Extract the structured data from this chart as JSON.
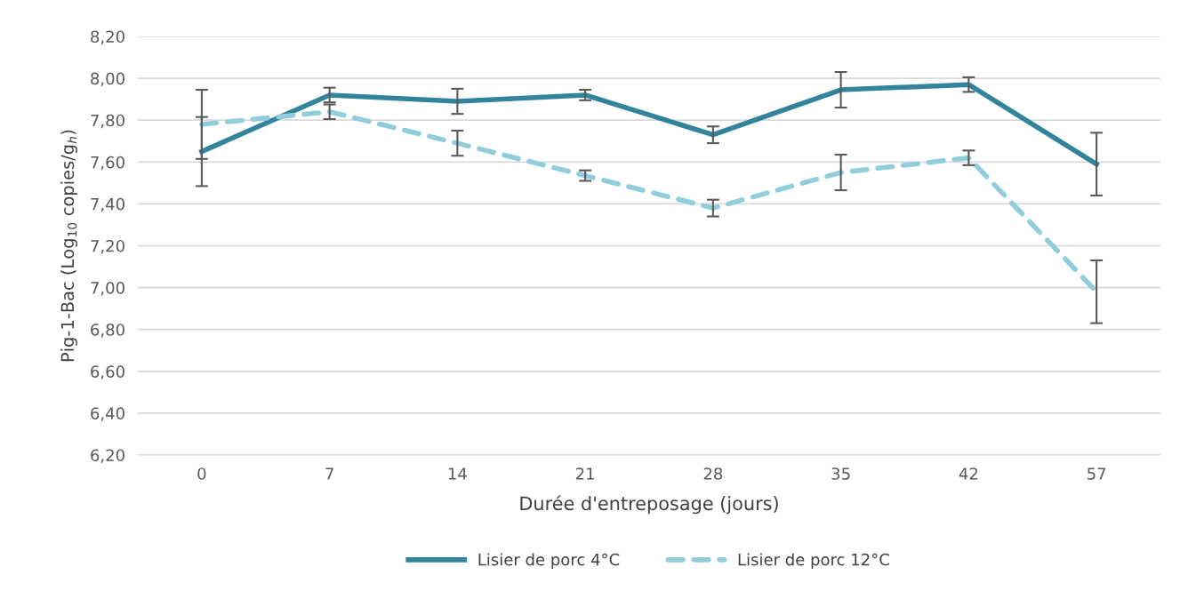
{
  "chart_data": {
    "type": "line",
    "xlabel": "Durée d'entreposage (jours)",
    "ylabel": "Pig-1-Bac (Log$_{10}$ copies/g$_{h}$)",
    "categories": [
      "0",
      "7",
      "14",
      "21",
      "28",
      "35",
      "42",
      "57"
    ],
    "series": [
      {
        "name": "Lisier de porc 4°C",
        "color": "#31849b",
        "line_style": "solid",
        "values": [
          7.65,
          7.92,
          7.89,
          7.92,
          7.73,
          7.945,
          7.97,
          7.59
        ],
        "errors": [
          0.165,
          0.035,
          0.06,
          0.025,
          0.04,
          0.085,
          0.035,
          0.15
        ]
      },
      {
        "name": "Lisier de porc 12°C",
        "color": "#92cddc",
        "line_style": "dashed",
        "values": [
          7.78,
          7.84,
          7.69,
          7.535,
          7.38,
          7.55,
          7.62,
          6.98
        ],
        "errors": [
          0.165,
          0.035,
          0.06,
          0.025,
          0.04,
          0.085,
          0.035,
          0.15
        ]
      }
    ],
    "ylim": [
      6.2,
      8.2
    ],
    "yticks": [
      {
        "value": 6.2,
        "label": "6,20"
      },
      {
        "value": 6.4,
        "label": "6,40"
      },
      {
        "value": 6.6,
        "label": "6,60"
      },
      {
        "value": 6.8,
        "label": "6,80"
      },
      {
        "value": 7.0,
        "label": "7,00"
      },
      {
        "value": 7.2,
        "label": "7,20"
      },
      {
        "value": 7.4,
        "label": "7,40"
      },
      {
        "value": 7.6,
        "label": "7,60"
      },
      {
        "value": 7.8,
        "label": "7,80"
      },
      {
        "value": 8.0,
        "label": "8,00"
      },
      {
        "value": 8.2,
        "label": "8,20"
      }
    ],
    "grid": "y",
    "legend": "bottom",
    "marker": "none"
  }
}
